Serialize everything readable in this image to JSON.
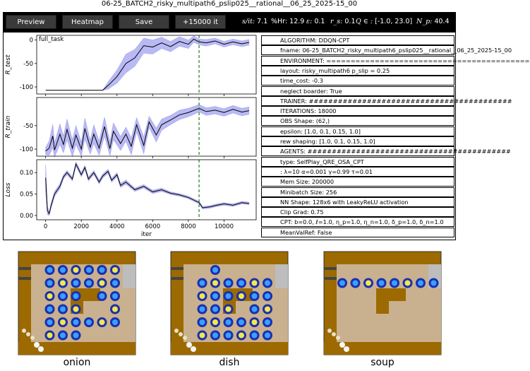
{
  "window_title": "06-25_BATCH2_risky_multipath6_pslip025__rational__06_25_2025-15_00",
  "toolbar": {
    "buttons": [
      "Preview",
      "Heatmap",
      "Save",
      "+15000 it"
    ],
    "stats": {
      "sit_label": "s/it:",
      "sit_value": "7.1",
      "hr_label": "%Hr:",
      "hr_value": "12.9",
      "eps_label": "ε:",
      "eps_value": "0.1",
      "rs_label": "r_s:",
      "rs_value": "0.1",
      "q_label": "Q ∈ :",
      "q_value": "[-1.0, 23.0]",
      "np_label": "N_p:",
      "np_value": "40.4"
    }
  },
  "chart_data": [
    {
      "type": "line",
      "title": "full_task",
      "ylabel": "R_test",
      "xlabel": "",
      "xlim": [
        -500,
        11800
      ],
      "ylim": [
        -115,
        10
      ],
      "yticks": [
        0,
        -50,
        -100
      ],
      "grid": false,
      "marker_x": 8600,
      "x": [
        0,
        3200,
        3500,
        4000,
        4500,
        5000,
        5500,
        6000,
        6500,
        7000,
        7500,
        8000,
        8300,
        8600,
        9000,
        9500,
        10000,
        10500,
        11000,
        11400
      ],
      "y": [
        -107,
        -107,
        -97,
        -78,
        -50,
        -38,
        -12,
        -15,
        -6,
        -14,
        -3,
        -9,
        2,
        -4,
        -6,
        -2,
        -9,
        -4,
        -8,
        -5
      ],
      "band": [
        0,
        0,
        8,
        14,
        20,
        18,
        16,
        15,
        12,
        11,
        10,
        9,
        7,
        6,
        7,
        6,
        6,
        6,
        6,
        6
      ]
    },
    {
      "type": "line",
      "title": "",
      "ylabel": "R_train",
      "xlabel": "",
      "xlim": [
        -500,
        11800
      ],
      "ylim": [
        -115,
        10
      ],
      "yticks": [
        -50,
        -100
      ],
      "grid": false,
      "marker_x": 8600,
      "x": [
        0,
        200,
        400,
        500,
        800,
        1000,
        1200,
        1500,
        1700,
        2000,
        2200,
        2500,
        2700,
        3000,
        3300,
        3600,
        3800,
        4200,
        4500,
        4800,
        5100,
        5500,
        5800,
        6200,
        6500,
        7000,
        7500,
        8000,
        8600,
        9000,
        9500,
        10000,
        10500,
        11000,
        11400
      ],
      "y": [
        -104,
        -98,
        -72,
        -102,
        -68,
        -90,
        -58,
        -98,
        -70,
        -100,
        -56,
        -96,
        -68,
        -98,
        -52,
        -99,
        -62,
        -88,
        -68,
        -94,
        -48,
        -92,
        -42,
        -70,
        -48,
        -38,
        -27,
        -22,
        -13,
        -20,
        -17,
        -22,
        -15,
        -21,
        -18
      ],
      "band": [
        8,
        15,
        25,
        15,
        22,
        18,
        22,
        18,
        20,
        15,
        22,
        15,
        20,
        15,
        20,
        15,
        18,
        15,
        15,
        18,
        15,
        18,
        12,
        15,
        12,
        10,
        10,
        9,
        8,
        8,
        8,
        8,
        8,
        8,
        8
      ]
    },
    {
      "type": "line",
      "title": "",
      "ylabel": "Loss",
      "xlabel": "iter",
      "xlim": [
        -500,
        11800
      ],
      "ylim": [
        -0.01,
        0.13
      ],
      "yticks": [
        0.1,
        0.05,
        0.0
      ],
      "xticks": [
        0,
        2000,
        4000,
        6000,
        8000,
        10000
      ],
      "grid": false,
      "marker_x": 8600,
      "x": [
        0,
        100,
        200,
        300,
        500,
        800,
        1000,
        1200,
        1500,
        1700,
        2000,
        2200,
        2400,
        2700,
        3000,
        3200,
        3500,
        3700,
        4000,
        4200,
        4500,
        5000,
        5500,
        6000,
        6500,
        7000,
        7500,
        8000,
        8600,
        8800,
        9200,
        9600,
        10000,
        10500,
        11000,
        11400
      ],
      "y": [
        0.088,
        0.012,
        0.004,
        0.022,
        0.05,
        0.068,
        0.09,
        0.1,
        0.085,
        0.12,
        0.095,
        0.112,
        0.085,
        0.1,
        0.078,
        0.092,
        0.103,
        0.082,
        0.095,
        0.07,
        0.078,
        0.06,
        0.068,
        0.055,
        0.06,
        0.052,
        0.048,
        0.042,
        0.03,
        0.018,
        0.02,
        0.024,
        0.027,
        0.024,
        0.03,
        0.028
      ],
      "band": [
        0.03,
        0.01,
        0.004,
        0.006,
        0.006,
        0.006,
        0.005,
        0.005,
        0.005,
        0.005,
        0.005,
        0.005,
        0.005,
        0.005,
        0.005,
        0.005,
        0.005,
        0.005,
        0.005,
        0.005,
        0.005,
        0.004,
        0.004,
        0.004,
        0.004,
        0.003,
        0.003,
        0.003,
        0.003,
        0.003,
        0.003,
        0.003,
        0.003,
        0.003,
        0.003,
        0.003
      ]
    }
  ],
  "info_rows": [
    "ALGORITHM: DDQN-CPT",
    "fname: 06-25_BATCH2_risky_multipath6_pslip025__rational__06_25_2025-15_00",
    "ENVIRONMENT: ==========================================",
    "layout: risky_multipath6 p_slip = 0.25",
    "time_cost: -0.3",
    "neglect boarder: True",
    "TRAINER: ##########################################",
    "ITERATIONS: 18000",
    "OBS Shape: (62,)",
    "epsilon: [1.0, 0.1, 0.15, 1.0]",
    "rew shaping: [1.0, 0.1, 0.15, 1.0]",
    "AGENTS: ##########################################",
    "type: SelfPlay_QRE_OSA_CPT",
    " : λ=10  α=0.001  γ=0.99   τ=0.01",
    "Mem Size: 200000",
    "Minibatch Size: 256",
    "NN Shape: 128x6 with LeakyReLU activation",
    "Clip Grad: 0.75",
    "CPT: b=0.0, ℓ=1.0, η_p=1.0, η_n=1.0, δ_p=1.0, δ_n=1.0",
    "MeanValRef: False"
  ],
  "heatmaps": [
    {
      "caption": "onion"
    },
    {
      "caption": "dish"
    },
    {
      "caption": "soup"
    }
  ],
  "colors": {
    "band": "#b9b9f4",
    "line": "#000000",
    "marker": "#2a8a2a",
    "wood": "#9c6a00",
    "floor": "#c9b08f",
    "counter": "#bdbdbd"
  }
}
